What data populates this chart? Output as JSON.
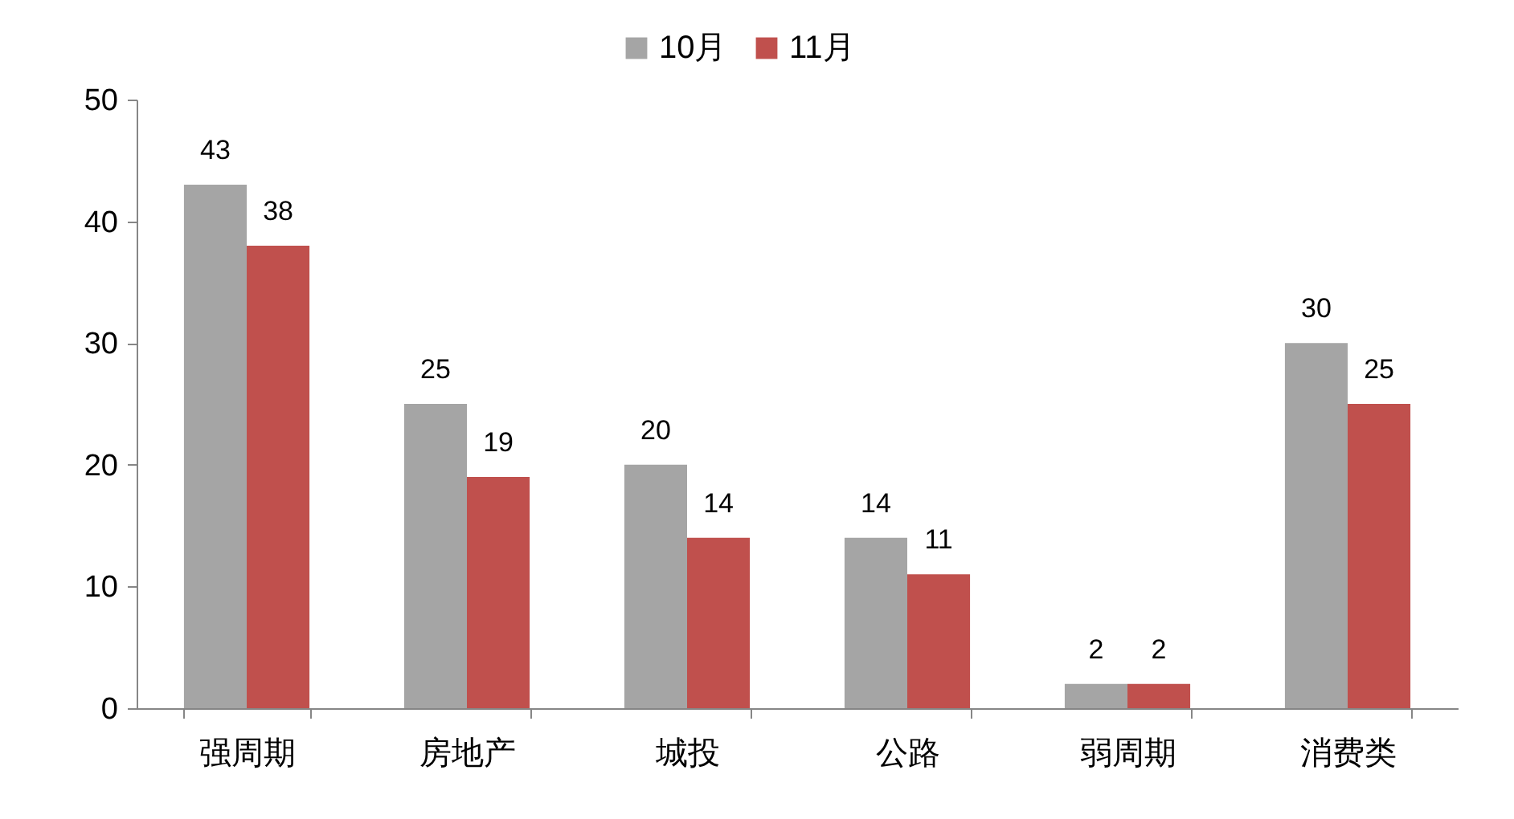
{
  "chart_data": {
    "type": "bar",
    "categories": [
      "强周期",
      "房地产",
      "城投",
      "公路",
      "弱周期",
      "消费类"
    ],
    "series": [
      {
        "name": "10月",
        "color": "#a5a5a5",
        "values": [
          43,
          25,
          20,
          14,
          2,
          30
        ]
      },
      {
        "name": "11月",
        "color": "#c0504d",
        "values": [
          38,
          19,
          14,
          11,
          2,
          25
        ]
      }
    ],
    "ylim": [
      0,
      50
    ],
    "yticks": [
      0,
      10,
      20,
      30,
      40,
      50
    ],
    "grid": false,
    "legend": "top",
    "data_labels": true
  }
}
